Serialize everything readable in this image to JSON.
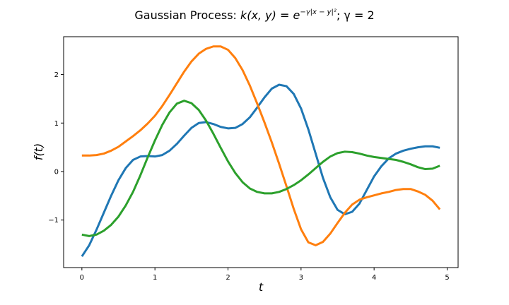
{
  "chart_data": {
    "type": "line",
    "title": "Gaussian Process: k(x, y) = e^{-γ|x − y|^2}; γ = 2",
    "title_parts": {
      "main": "Gaussian Process: ",
      "k": "k",
      "args": "(x, y) = e",
      "exp": "−γ|x − y|²",
      "tail": "; γ = 2"
    },
    "xlabel": "t",
    "ylabel": "f(t)",
    "xlim": [
      -0.25,
      5.15
    ],
    "ylim": [
      -1.98,
      2.78
    ],
    "xticks": [
      0,
      1,
      2,
      3,
      4,
      5
    ],
    "xtick_labels": [
      "0",
      "1",
      "2",
      "3",
      "4",
      "5"
    ],
    "yticks": [
      -1,
      0,
      1,
      2
    ],
    "ytick_labels": [
      "−1",
      "0",
      "1",
      "2"
    ],
    "grid": false,
    "x": [
      0.0,
      0.1,
      0.2,
      0.3,
      0.4,
      0.5,
      0.6,
      0.7,
      0.8,
      0.9,
      1.0,
      1.1,
      1.2,
      1.3,
      1.4,
      1.5,
      1.6,
      1.7,
      1.8,
      1.9,
      2.0,
      2.1,
      2.2,
      2.3,
      2.4,
      2.5,
      2.6,
      2.7,
      2.8,
      2.9,
      3.0,
      3.1,
      3.2,
      3.3,
      3.4,
      3.5,
      3.6,
      3.7,
      3.8,
      3.9,
      4.0,
      4.1,
      4.2,
      4.3,
      4.4,
      4.5,
      4.6,
      4.7,
      4.8,
      4.9
    ],
    "series": [
      {
        "color": "#1f77b4",
        "values": [
          -1.75,
          -1.52,
          -1.2,
          -0.85,
          -0.5,
          -0.18,
          0.07,
          0.24,
          0.31,
          0.32,
          0.31,
          0.34,
          0.43,
          0.57,
          0.74,
          0.9,
          1.0,
          1.02,
          0.98,
          0.92,
          0.89,
          0.9,
          0.98,
          1.12,
          1.32,
          1.53,
          1.71,
          1.79,
          1.76,
          1.6,
          1.3,
          0.87,
          0.37,
          -0.13,
          -0.53,
          -0.79,
          -0.88,
          -0.83,
          -0.66,
          -0.38,
          -0.1,
          0.11,
          0.27,
          0.37,
          0.43,
          0.47,
          0.5,
          0.52,
          0.52,
          0.49
        ]
      },
      {
        "color": "#ff7f0e",
        "values": [
          0.33,
          0.33,
          0.34,
          0.37,
          0.43,
          0.51,
          0.62,
          0.73,
          0.85,
          0.99,
          1.15,
          1.35,
          1.58,
          1.82,
          2.06,
          2.27,
          2.43,
          2.53,
          2.58,
          2.58,
          2.51,
          2.34,
          2.09,
          1.77,
          1.4,
          1.01,
          0.6,
          0.16,
          -0.3,
          -0.77,
          -1.19,
          -1.46,
          -1.52,
          -1.45,
          -1.28,
          -1.06,
          -0.85,
          -0.68,
          -0.58,
          -0.53,
          -0.49,
          -0.45,
          -0.42,
          -0.38,
          -0.36,
          -0.36,
          -0.41,
          -0.48,
          -0.6,
          -0.78
        ]
      },
      {
        "color": "#2ca02c",
        "values": [
          -1.3,
          -1.33,
          -1.3,
          -1.22,
          -1.1,
          -0.93,
          -0.7,
          -0.42,
          -0.08,
          0.29,
          0.64,
          0.96,
          1.22,
          1.4,
          1.46,
          1.41,
          1.27,
          1.05,
          0.78,
          0.49,
          0.21,
          -0.03,
          -0.22,
          -0.35,
          -0.42,
          -0.45,
          -0.45,
          -0.42,
          -0.36,
          -0.28,
          -0.18,
          -0.06,
          0.07,
          0.2,
          0.31,
          0.38,
          0.41,
          0.4,
          0.37,
          0.33,
          0.3,
          0.28,
          0.26,
          0.24,
          0.2,
          0.15,
          0.09,
          0.05,
          0.06,
          0.12
        ]
      }
    ]
  }
}
